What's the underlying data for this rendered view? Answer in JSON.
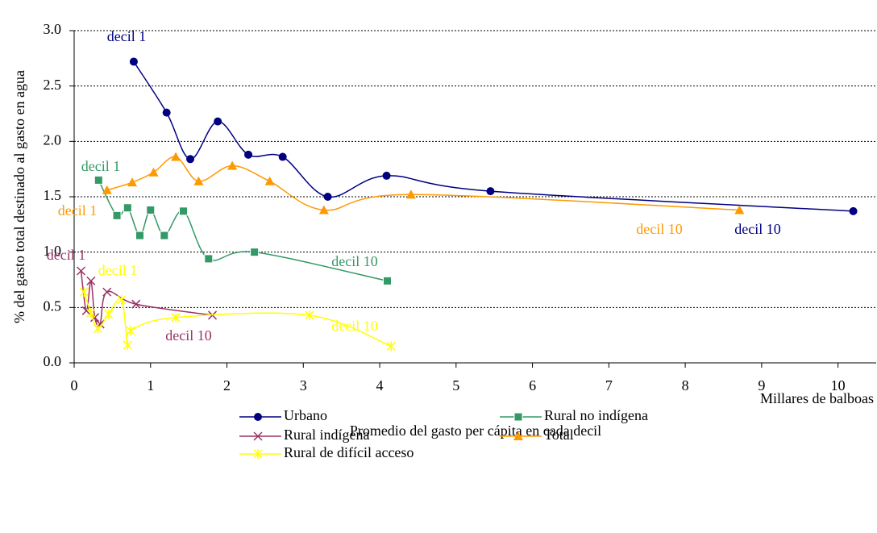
{
  "chart_data": {
    "type": "line",
    "ylabel": "% del gasto total destinado al gasto en agua",
    "xlabel": "Promedio del gasto per cápita en cada decil",
    "xunit": "Millares de balboas",
    "xlim": [
      0,
      10.5
    ],
    "xticks": [
      0,
      1,
      2,
      3,
      4,
      5,
      6,
      7,
      8,
      9,
      10
    ],
    "ylim": [
      0,
      3.0
    ],
    "yticks": [
      {
        "value": 0,
        "label": "0.0"
      },
      0.5,
      {
        "value": 1,
        "label": "1.0"
      },
      1.5,
      {
        "value": 2,
        "label": "2.0"
      },
      2.5,
      {
        "value": 3,
        "label": "3.0"
      }
    ],
    "grid": true,
    "series": [
      {
        "name": "Urbano",
        "color": "#000080",
        "marker": "circle",
        "x": [
          0.78,
          1.21,
          1.52,
          1.88,
          2.28,
          2.73,
          3.32,
          4.09,
          5.45,
          10.2
        ],
        "values": [
          2.72,
          2.26,
          1.84,
          2.18,
          1.88,
          1.86,
          1.5,
          1.69,
          1.55,
          1.37
        ]
      },
      {
        "name": "Rural  no indígena",
        "color": "#339966",
        "marker": "square",
        "x": [
          0.32,
          0.56,
          0.7,
          0.86,
          1.0,
          1.18,
          1.43,
          1.76,
          2.36,
          4.1
        ],
        "values": [
          1.65,
          1.33,
          1.4,
          1.15,
          1.38,
          1.15,
          1.37,
          0.94,
          1.0,
          0.74
        ]
      },
      {
        "name": "Rural  indígena",
        "color": "#993366",
        "marker": "x",
        "x": [
          0.09,
          0.16,
          0.22,
          0.27,
          0.34,
          0.43,
          0.81,
          1.81
        ],
        "values": [
          0.83,
          0.47,
          0.74,
          0.41,
          0.35,
          0.64,
          0.53,
          0.43
        ]
      },
      {
        "name": "Total",
        "color": "#ff9900",
        "marker": "triangle",
        "x": [
          0.43,
          0.76,
          1.04,
          1.33,
          1.63,
          2.07,
          2.56,
          3.27,
          4.41,
          8.71
        ],
        "values": [
          1.56,
          1.63,
          1.72,
          1.86,
          1.64,
          1.78,
          1.64,
          1.38,
          1.52,
          1.38
        ]
      },
      {
        "name": "Rural de difícil acceso",
        "color": "#ffff00",
        "marker": "star",
        "x": [
          0.13,
          0.22,
          0.31,
          0.45,
          0.62,
          0.7,
          0.74,
          1.33,
          3.08,
          4.15
        ],
        "values": [
          0.64,
          0.45,
          0.31,
          0.44,
          0.57,
          0.16,
          0.29,
          0.41,
          0.43,
          0.15
        ]
      }
    ],
    "annotations": [
      {
        "text": "decil 1",
        "color": "#000080"
      },
      {
        "text": "decil 10",
        "color": "#000080"
      },
      {
        "text": "decil 1",
        "color": "#339966"
      },
      {
        "text": "decil 10",
        "color": "#339966"
      },
      {
        "text": "decil 1",
        "color": "#ff9900"
      },
      {
        "text": "decil 10",
        "color": "#ff9900"
      },
      {
        "text": "decil 1",
        "color": "#993366"
      },
      {
        "text": "decil 10",
        "color": "#993366"
      },
      {
        "text": "decil 1",
        "color": "#ffff00"
      },
      {
        "text": "decil 10",
        "color": "#ffff00"
      }
    ]
  }
}
